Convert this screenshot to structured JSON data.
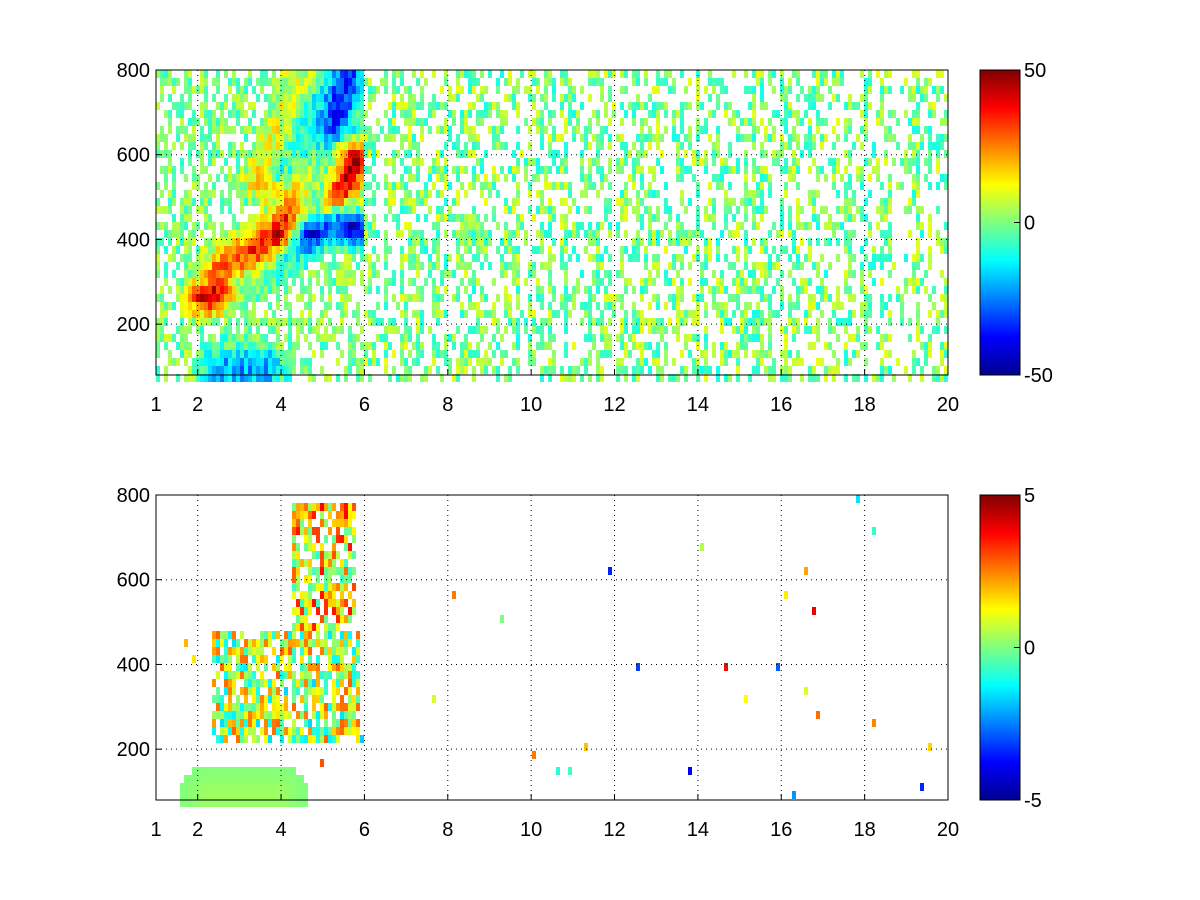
{
  "chart_data": [
    {
      "type": "heatmap",
      "title": "",
      "xlabel": "",
      "ylabel": "",
      "x_ticks": [
        "1",
        "2",
        "4",
        "6",
        "8",
        "10",
        "12",
        "14",
        "16",
        "18",
        "20"
      ],
      "x_tick_values": [
        1,
        2,
        4,
        6,
        8,
        10,
        12,
        14,
        16,
        18,
        20
      ],
      "y_ticks": [
        "200",
        "400",
        "600",
        "800"
      ],
      "y_tick_values": [
        200,
        400,
        600,
        800
      ],
      "xlim": [
        1,
        20
      ],
      "ylim": [
        80,
        800
      ],
      "grid": true,
      "colormap": "jet",
      "colorbar": {
        "position": "right",
        "range": [
          -50,
          50
        ],
        "ticks": [
          "50",
          "0",
          "-50"
        ],
        "tick_values": [
          50,
          0,
          -50
        ]
      },
      "features": [
        {
          "kind": "ridge",
          "sign": "positive",
          "points": [
            [
              2.2,
              260
            ],
            [
              2.8,
              290
            ],
            [
              3.5,
              330
            ],
            [
              4.2,
              400
            ],
            [
              5.0,
              470
            ],
            [
              5.4,
              520
            ],
            [
              5.8,
              580
            ]
          ],
          "value": 42
        },
        {
          "kind": "ridge",
          "sign": "positive",
          "points": [
            [
              2.6,
              340
            ],
            [
              3.2,
              370
            ],
            [
              3.9,
              420
            ],
            [
              4.4,
              500
            ],
            [
              4.9,
              560
            ],
            [
              5.3,
              610
            ]
          ],
          "value": 28
        },
        {
          "kind": "ridge",
          "sign": "positive",
          "points": [
            [
              3.6,
              540
            ],
            [
              3.9,
              600
            ],
            [
              4.2,
              680
            ],
            [
              4.5,
              760
            ]
          ],
          "value": 22
        },
        {
          "kind": "ridge",
          "sign": "negative",
          "points": [
            [
              3.0,
              300
            ],
            [
              3.6,
              330
            ],
            [
              4.2,
              380
            ],
            [
              4.8,
              420
            ],
            [
              5.3,
              440
            ],
            [
              5.8,
              420
            ]
          ],
          "value": -40
        },
        {
          "kind": "ridge",
          "sign": "negative",
          "points": [
            [
              4.6,
              430
            ],
            [
              4.9,
              520
            ],
            [
              5.2,
              620
            ],
            [
              5.4,
              720
            ],
            [
              5.6,
              790
            ]
          ],
          "value": -35
        },
        {
          "kind": "ridge",
          "sign": "negative",
          "points": [
            [
              4.0,
              560
            ],
            [
              4.3,
              650
            ],
            [
              4.6,
              740
            ]
          ],
          "value": -20
        },
        {
          "kind": "blob",
          "sign": "negative",
          "points": [
            [
              2.6,
              95
            ],
            [
              3.6,
              95
            ]
          ],
          "value": -22
        }
      ],
      "noise": {
        "x_range": [
          6,
          20
        ],
        "density": 0.45,
        "amplitude": 5
      }
    },
    {
      "type": "heatmap",
      "title": "",
      "xlabel": "",
      "ylabel": "",
      "x_ticks": [
        "1",
        "2",
        "4",
        "6",
        "8",
        "10",
        "12",
        "14",
        "16",
        "18",
        "20"
      ],
      "x_tick_values": [
        1,
        2,
        4,
        6,
        8,
        10,
        12,
        14,
        16,
        18,
        20
      ],
      "y_ticks": [
        "200",
        "400",
        "600",
        "800"
      ],
      "y_tick_values": [
        200,
        400,
        600,
        800
      ],
      "xlim": [
        1,
        20
      ],
      "ylim": [
        80,
        800
      ],
      "grid": true,
      "colormap": "jet",
      "colorbar": {
        "position": "right",
        "range": [
          -5,
          5
        ],
        "ticks": [
          "5",
          "0",
          "-5"
        ],
        "tick_values": [
          5,
          0,
          -5
        ]
      },
      "features": [
        {
          "kind": "region",
          "x_range": [
            2.3,
            5.9
          ],
          "y_range": [
            220,
            480
          ],
          "value": 0.6
        },
        {
          "kind": "region",
          "x_range": [
            4.3,
            5.8
          ],
          "y_range": [
            480,
            780
          ],
          "value": 1.5
        },
        {
          "kind": "blob",
          "sign": "positive",
          "points": [
            [
              2.3,
              92
            ],
            [
              3.9,
              92
            ]
          ],
          "value": 0.3
        }
      ]
    }
  ]
}
